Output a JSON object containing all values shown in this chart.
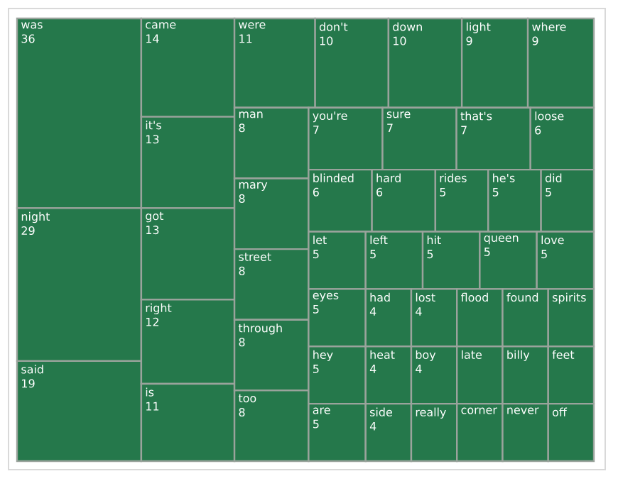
{
  "chart_data": {
    "type": "other",
    "categories": [
      "was",
      "night",
      "said",
      "came",
      "it's",
      "got",
      "right",
      "is",
      "were",
      "don't",
      "down",
      "light",
      "where",
      "man",
      "mary",
      "street",
      "through",
      "too",
      "you're",
      "sure",
      "that's",
      "loose",
      "blinded",
      "hard",
      "rides",
      "he's",
      "did",
      "let",
      "eyes",
      "hey",
      "are",
      "left",
      "hit",
      "queen",
      "love",
      "had",
      "heat",
      "side",
      "lost",
      "boy",
      "really",
      "flood",
      "found",
      "spirits",
      "late",
      "corner",
      "billy",
      "feet",
      "never",
      "off"
    ],
    "values": [
      36,
      29,
      19,
      14,
      13,
      13,
      12,
      11,
      11,
      10,
      10,
      9,
      9,
      8,
      8,
      8,
      8,
      8,
      7,
      7,
      7,
      6,
      6,
      6,
      5,
      5,
      5,
      5,
      5,
      5,
      5,
      5,
      5,
      5,
      5,
      4,
      4,
      4,
      4,
      4,
      null,
      null,
      null,
      null,
      null,
      null,
      null,
      null,
      null,
      null
    ],
    "value_labels": [
      "36",
      "29",
      "19",
      "14",
      "13",
      "13",
      "12",
      "11",
      "11",
      "10",
      "10",
      "9",
      "9",
      "8",
      "8",
      "8",
      "8",
      "8",
      "7",
      "7",
      "7",
      "6",
      "6",
      "6",
      "5",
      "5",
      "5",
      "5",
      "5",
      "5",
      "5",
      "5",
      "5",
      "5",
      "5",
      "4",
      "4",
      "4",
      "4",
      "4",
      null,
      null,
      null,
      null,
      null,
      null,
      null,
      null,
      null,
      null
    ],
    "color": "#25784b"
  }
}
